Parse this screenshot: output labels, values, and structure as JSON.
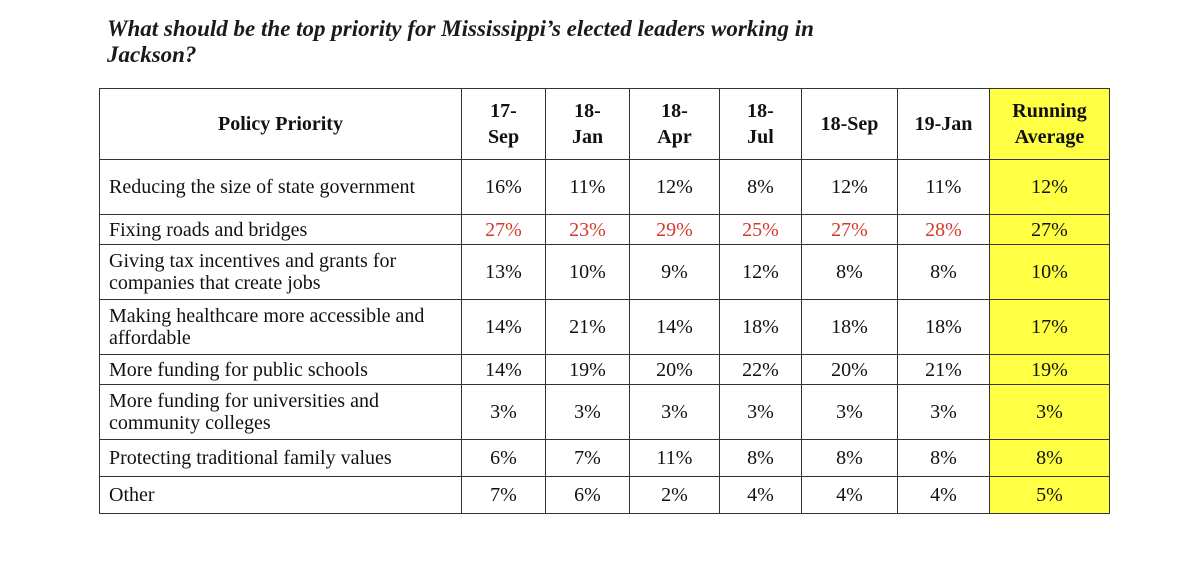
{
  "title": "What should be the top priority for Mississippi’s elected leaders working in Jackson?",
  "chart_data": {
    "type": "table",
    "title": "What should be the top priority for Mississippi’s elected leaders working in Jackson?",
    "columns": [
      "Policy Priority",
      "17-Sep",
      "18-Jan",
      "18-Apr",
      "18-Jul",
      "18-Sep",
      "19-Jan",
      "Running Average"
    ],
    "header_display": {
      "policy": "Policy Priority",
      "c1_line1": "17-",
      "c1_line2": "Sep",
      "c2_line1": "18-",
      "c2_line2": "Jan",
      "c3_line1": "18-",
      "c3_line2": "Apr",
      "c4_line1": "18-",
      "c4_line2": "Jul",
      "c5": "18-Sep",
      "c6": "19-Jan",
      "c7_line1": "Running",
      "c7_line2": "Average"
    },
    "rows": [
      {
        "policy": "Reducing the size of state government",
        "values": [
          "16%",
          "11%",
          "12%",
          "8%",
          "12%",
          "11%",
          "12%"
        ]
      },
      {
        "policy": "Fixing roads and bridges",
        "values": [
          "27%",
          "23%",
          "29%",
          "25%",
          "27%",
          "28%",
          "27%"
        ]
      },
      {
        "policy": "Giving tax incentives and grants for companies that create jobs",
        "values": [
          "13%",
          "10%",
          "9%",
          "12%",
          "8%",
          "8%",
          "10%"
        ]
      },
      {
        "policy": "Making healthcare more accessible and affordable",
        "values": [
          "14%",
          "21%",
          "14%",
          "18%",
          "18%",
          "18%",
          "17%"
        ]
      },
      {
        "policy": "More funding for public schools",
        "values": [
          "14%",
          "19%",
          "20%",
          "22%",
          "20%",
          "21%",
          "19%"
        ]
      },
      {
        "policy": "More funding for universities and community colleges",
        "values": [
          "3%",
          "3%",
          "3%",
          "3%",
          "3%",
          "3%",
          "3%"
        ]
      },
      {
        "policy": "Protecting traditional family values",
        "values": [
          "6%",
          "7%",
          "11%",
          "8%",
          "8%",
          "8%",
          "8%"
        ]
      },
      {
        "policy": "Other",
        "values": [
          "7%",
          "6%",
          "2%",
          "4%",
          "4%",
          "4%",
          "5%"
        ]
      }
    ],
    "highlight_color": "#ffff44",
    "emphasis_color": "#d33a2c"
  }
}
